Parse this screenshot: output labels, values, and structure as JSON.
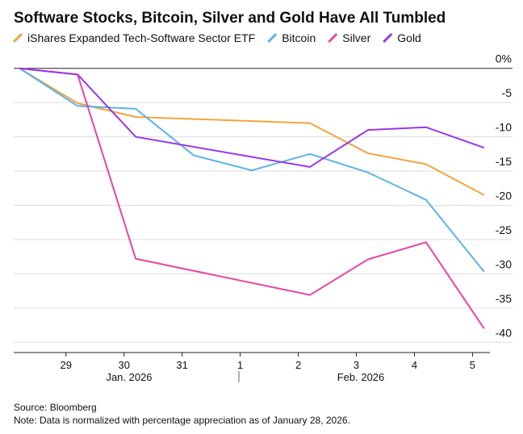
{
  "chart_data": {
    "type": "line",
    "title": "Software Stocks, Bitcoin, Silver and Gold Have All Tumbled",
    "source": "Source: Bloomberg",
    "note": "Note: Data is normalized with percentage appreciation as of January 28, 2026.",
    "month_labels": [
      "Jan. 2026",
      "Feb. 2026"
    ],
    "xlim": [
      28.1,
      36.3
    ],
    "xticks": [
      {
        "value": 29,
        "label": "29"
      },
      {
        "value": 30,
        "label": "30"
      },
      {
        "value": 31,
        "label": "31"
      },
      {
        "value": 32,
        "label": "1"
      },
      {
        "value": 33,
        "label": "2"
      },
      {
        "value": 34,
        "label": "3"
      },
      {
        "value": 35,
        "label": "4"
      },
      {
        "value": 36,
        "label": "5"
      }
    ],
    "ylim": [
      -41.5,
      1.5
    ],
    "yticks": [
      {
        "value": 0,
        "label": "0%"
      },
      -5,
      -10,
      -15,
      -20,
      -25,
      -30,
      -35,
      -40
    ],
    "grid": true,
    "series": [
      {
        "name": "iShares Expanded Tech-Software Sector ETF",
        "color": "#f5a33d",
        "x": [
          28.2,
          29.2,
          30.2,
          33.2,
          34.2,
          35.2,
          36.2
        ],
        "values": [
          0,
          -5.1,
          -7.1,
          -8.0,
          -12.4,
          -14.0,
          -18.5
        ]
      },
      {
        "name": "Bitcoin",
        "color": "#5ab4ea",
        "x": [
          28.2,
          29.2,
          30.2,
          31.2,
          32.2,
          33.2,
          34.2,
          35.2,
          36.2
        ],
        "values": [
          0,
          -5.5,
          -5.9,
          -12.7,
          -14.9,
          -12.5,
          -15.2,
          -19.2,
          -29.7
        ]
      },
      {
        "name": "Silver",
        "color": "#e844a5",
        "x": [
          28.2,
          29.2,
          30.2,
          33.2,
          34.2,
          35.2,
          36.2
        ],
        "values": [
          0,
          -0.9,
          -27.8,
          -33.1,
          -27.9,
          -25.4,
          -38.0
        ]
      },
      {
        "name": "Gold",
        "color": "#9a36e8",
        "x": [
          28.2,
          29.2,
          30.2,
          33.2,
          34.2,
          35.2,
          36.2
        ],
        "values": [
          0,
          -0.9,
          -10.0,
          -14.4,
          -9.0,
          -8.6,
          -11.6
        ]
      }
    ]
  }
}
